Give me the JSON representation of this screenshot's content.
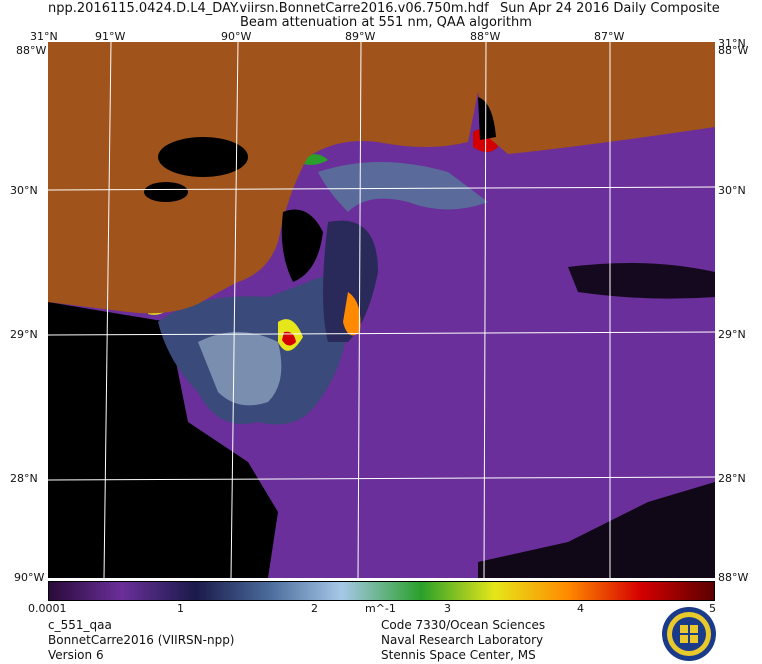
{
  "header": {
    "file_name": "npp.2016115.0424.D.L4_DAY.viirsn.BonnetCarre2016.v06.750m.hdf",
    "date": "Sun Apr 24 2016 Daily Composite",
    "product": "Beam attenuation at 551 nm, QAA algorithm"
  },
  "map": {
    "longitude_ticks": [
      "91°W",
      "90°W",
      "89°W",
      "88°W",
      "87°W"
    ],
    "latitude_ticks": [
      "30°N",
      "29°N",
      "28°N"
    ],
    "corner_top": "31°N",
    "corner_top_right": "31°N",
    "corner_left_top": "88°W",
    "corner_right_top": "88°W",
    "corner_left_bottom": "90°W",
    "corner_right_bottom": "88°W",
    "colors": {
      "land": "#a0531b",
      "water_background": "#6a2f9a",
      "no_data": "#000000",
      "grid": "#ffffff"
    }
  },
  "colorbar": {
    "labels": [
      "0.0001",
      "1",
      "2",
      "m^-1",
      "3",
      "4",
      "5"
    ],
    "colors": [
      "#2a0a3a",
      "#6a2f9a",
      "#1a1a4a",
      "#4a6a9a",
      "#a6c8e8",
      "#2aa02a",
      "#e6e61a",
      "#ff8a00",
      "#d40000",
      "#5a0000"
    ]
  },
  "footer": {
    "left": [
      "c_551_qaa",
      "BonnetCarre2016 (VIIRSN-npp)",
      "Version 6"
    ],
    "right": [
      "Code 7330/Ocean Sciences",
      "Naval Research Laboratory",
      "Stennis Space Center, MS"
    ]
  }
}
